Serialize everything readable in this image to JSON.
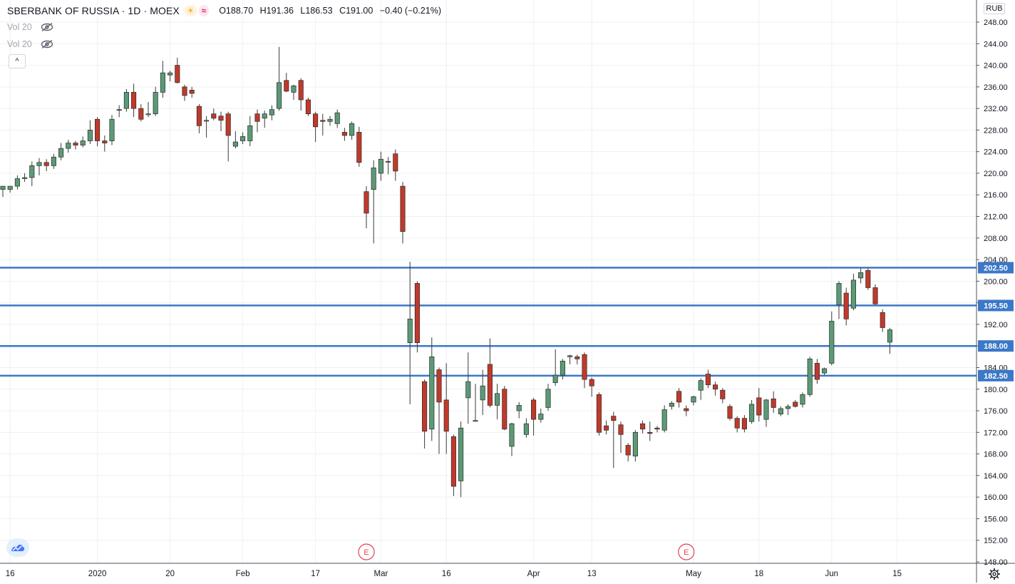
{
  "header": {
    "title": "SBERBANK OF RUSSIA · 1D · MOEX",
    "open": "O188.70",
    "high": "H191.36",
    "low": "L186.53",
    "close": "C191.00",
    "change": "−0.40 (−0.21%)",
    "sun_icon": "sun-icon",
    "wave_icon": "wave-icon"
  },
  "indicators": [
    {
      "label": "Vol 20",
      "icon": "eye-off-icon"
    },
    {
      "label": "Vol 20",
      "icon": "eye-off-icon"
    }
  ],
  "currency": "RUB",
  "colors": {
    "up": "#5b9a76",
    "down": "#c0392b",
    "level_line": "#3b78c7",
    "grid": "#eef0f3"
  },
  "chart_data": {
    "type": "candlestick",
    "ylim": [
      148,
      250
    ],
    "y_ticks": [
      148,
      152,
      156,
      160,
      164,
      168,
      172,
      176,
      180,
      184,
      188,
      192,
      196,
      200,
      204,
      208,
      212,
      216,
      220,
      224,
      228,
      232,
      236,
      240,
      244,
      248
    ],
    "x_labels": [
      {
        "label": "16",
        "index": 1
      },
      {
        "label": "2020",
        "index": 13
      },
      {
        "label": "20",
        "index": 23
      },
      {
        "label": "Feb",
        "index": 33
      },
      {
        "label": "17",
        "index": 43
      },
      {
        "label": "Mar",
        "index": 52
      },
      {
        "label": "16",
        "index": 61
      },
      {
        "label": "Apr",
        "index": 73
      },
      {
        "label": "13",
        "index": 81
      },
      {
        "label": "May",
        "index": 95
      },
      {
        "label": "18",
        "index": 104
      },
      {
        "label": "Jun",
        "index": 114
      },
      {
        "label": "15",
        "index": 123
      }
    ],
    "horizontal_levels": [
      202.5,
      195.5,
      188.0,
      182.5
    ],
    "level_labels": [
      "202.50",
      "195.50",
      "188.00",
      "182.50"
    ],
    "event_markers": [
      {
        "label": "E",
        "index": 50
      },
      {
        "label": "E",
        "index": 94
      }
    ],
    "candles": [
      {
        "o": 217.0,
        "h": 217.6,
        "l": 215.6,
        "c": 217.6
      },
      {
        "o": 217.0,
        "h": 217.6,
        "l": 216.4,
        "c": 217.6
      },
      {
        "o": 217.6,
        "h": 219.6,
        "l": 217.0,
        "c": 219.0
      },
      {
        "o": 219.0,
        "h": 220.0,
        "l": 218.4,
        "c": 219.2
      },
      {
        "o": 219.2,
        "h": 222.2,
        "l": 217.6,
        "c": 221.4
      },
      {
        "o": 221.4,
        "h": 222.8,
        "l": 219.6,
        "c": 222.0
      },
      {
        "o": 222.0,
        "h": 222.6,
        "l": 220.4,
        "c": 221.4
      },
      {
        "o": 221.4,
        "h": 223.6,
        "l": 220.8,
        "c": 223.0
      },
      {
        "o": 223.0,
        "h": 225.6,
        "l": 222.4,
        "c": 224.6
      },
      {
        "o": 224.6,
        "h": 226.2,
        "l": 223.8,
        "c": 225.6
      },
      {
        "o": 225.6,
        "h": 226.0,
        "l": 224.4,
        "c": 225.2
      },
      {
        "o": 225.2,
        "h": 226.8,
        "l": 224.8,
        "c": 226.0
      },
      {
        "o": 226.0,
        "h": 229.8,
        "l": 225.4,
        "c": 228.0
      },
      {
        "o": 230.0,
        "h": 230.4,
        "l": 225.0,
        "c": 226.0
      },
      {
        "o": 226.0,
        "h": 227.0,
        "l": 224.0,
        "c": 225.6
      },
      {
        "o": 226.0,
        "h": 230.8,
        "l": 225.2,
        "c": 230.0
      },
      {
        "o": 231.8,
        "h": 232.6,
        "l": 230.4,
        "c": 231.8
      },
      {
        "o": 232.0,
        "h": 235.6,
        "l": 231.4,
        "c": 235.0
      },
      {
        "o": 235.0,
        "h": 236.6,
        "l": 230.4,
        "c": 232.0
      },
      {
        "o": 232.0,
        "h": 232.8,
        "l": 229.6,
        "c": 230.0
      },
      {
        "o": 231.0,
        "h": 233.2,
        "l": 230.4,
        "c": 231.0
      },
      {
        "o": 231.0,
        "h": 236.0,
        "l": 230.6,
        "c": 235.0
      },
      {
        "o": 235.0,
        "h": 240.8,
        "l": 234.0,
        "c": 238.6
      },
      {
        "o": 238.2,
        "h": 239.0,
        "l": 237.0,
        "c": 238.6
      },
      {
        "o": 240.0,
        "h": 241.4,
        "l": 236.6,
        "c": 236.8
      },
      {
        "o": 236.0,
        "h": 236.4,
        "l": 233.4,
        "c": 234.4
      },
      {
        "o": 235.4,
        "h": 236.0,
        "l": 234.0,
        "c": 234.8
      },
      {
        "o": 232.4,
        "h": 232.8,
        "l": 227.4,
        "c": 228.8
      },
      {
        "o": 229.8,
        "h": 230.6,
        "l": 226.6,
        "c": 229.8
      },
      {
        "o": 231.0,
        "h": 232.0,
        "l": 229.8,
        "c": 230.2
      },
      {
        "o": 230.6,
        "h": 231.4,
        "l": 227.8,
        "c": 229.8
      },
      {
        "o": 231.0,
        "h": 231.4,
        "l": 222.2,
        "c": 227.0
      },
      {
        "o": 225.0,
        "h": 227.8,
        "l": 224.6,
        "c": 225.8
      },
      {
        "o": 226.0,
        "h": 227.6,
        "l": 225.4,
        "c": 226.8
      },
      {
        "o": 226.0,
        "h": 230.6,
        "l": 225.0,
        "c": 228.8
      },
      {
        "o": 231.0,
        "h": 231.8,
        "l": 227.6,
        "c": 229.6
      },
      {
        "o": 230.2,
        "h": 231.6,
        "l": 228.4,
        "c": 231.0
      },
      {
        "o": 230.8,
        "h": 232.6,
        "l": 229.8,
        "c": 231.8
      },
      {
        "o": 232.0,
        "h": 243.4,
        "l": 231.6,
        "c": 236.8
      },
      {
        "o": 237.2,
        "h": 238.6,
        "l": 235.0,
        "c": 235.2
      },
      {
        "o": 235.0,
        "h": 236.4,
        "l": 233.6,
        "c": 236.2
      },
      {
        "o": 237.2,
        "h": 237.6,
        "l": 231.6,
        "c": 233.6
      },
      {
        "o": 233.6,
        "h": 234.0,
        "l": 230.6,
        "c": 231.0
      },
      {
        "o": 231.0,
        "h": 231.4,
        "l": 225.8,
        "c": 228.6
      },
      {
        "o": 229.8,
        "h": 231.0,
        "l": 227.0,
        "c": 229.6
      },
      {
        "o": 229.6,
        "h": 230.6,
        "l": 228.8,
        "c": 230.0
      },
      {
        "o": 229.2,
        "h": 231.8,
        "l": 228.4,
        "c": 231.2
      },
      {
        "o": 227.6,
        "h": 228.4,
        "l": 226.0,
        "c": 227.0
      },
      {
        "o": 227.0,
        "h": 229.6,
        "l": 226.2,
        "c": 229.2
      },
      {
        "o": 227.6,
        "h": 228.6,
        "l": 221.2,
        "c": 222.0
      },
      {
        "o": 216.6,
        "h": 217.6,
        "l": 209.8,
        "c": 212.6
      },
      {
        "o": 217.0,
        "h": 222.4,
        "l": 207.0,
        "c": 221.0
      },
      {
        "o": 220.0,
        "h": 224.0,
        "l": 218.6,
        "c": 222.6
      },
      {
        "o": 222.2,
        "h": 223.0,
        "l": 219.8,
        "c": 222.2
      },
      {
        "o": 223.6,
        "h": 224.4,
        "l": 218.6,
        "c": 220.4
      },
      {
        "o": 217.6,
        "h": 218.4,
        "l": 207.0,
        "c": 209.2
      },
      {
        "o": 188.6,
        "h": 203.6,
        "l": 177.2,
        "c": 193.0
      },
      {
        "o": 199.6,
        "h": 200.0,
        "l": 186.8,
        "c": 188.6
      },
      {
        "o": 181.4,
        "h": 181.8,
        "l": 169.0,
        "c": 172.2
      },
      {
        "o": 172.6,
        "h": 189.6,
        "l": 170.4,
        "c": 186.0
      },
      {
        "o": 183.6,
        "h": 184.0,
        "l": 168.0,
        "c": 177.6
      },
      {
        "o": 178.0,
        "h": 184.8,
        "l": 168.0,
        "c": 172.2
      },
      {
        "o": 171.2,
        "h": 171.6,
        "l": 160.2,
        "c": 162.0
      },
      {
        "o": 163.0,
        "h": 174.0,
        "l": 160.0,
        "c": 172.8
      },
      {
        "o": 178.4,
        "h": 186.8,
        "l": 173.6,
        "c": 181.4
      },
      {
        "o": 174.2,
        "h": 181.0,
        "l": 174.0,
        "c": 174.2
      },
      {
        "o": 178.0,
        "h": 183.6,
        "l": 175.2,
        "c": 180.6
      },
      {
        "o": 184.6,
        "h": 189.4,
        "l": 176.6,
        "c": 177.0
      },
      {
        "o": 177.0,
        "h": 181.0,
        "l": 174.4,
        "c": 179.2
      },
      {
        "o": 180.0,
        "h": 180.6,
        "l": 172.4,
        "c": 172.6
      },
      {
        "o": 169.4,
        "h": 173.8,
        "l": 167.6,
        "c": 173.6
      },
      {
        "o": 176.0,
        "h": 177.6,
        "l": 174.6,
        "c": 177.0
      },
      {
        "o": 171.6,
        "h": 174.6,
        "l": 171.0,
        "c": 173.6
      },
      {
        "o": 178.0,
        "h": 178.4,
        "l": 171.4,
        "c": 174.4
      },
      {
        "o": 174.4,
        "h": 176.4,
        "l": 173.8,
        "c": 175.4
      },
      {
        "o": 176.6,
        "h": 181.0,
        "l": 176.0,
        "c": 180.0
      },
      {
        "o": 181.2,
        "h": 187.4,
        "l": 180.6,
        "c": 182.6
      },
      {
        "o": 182.6,
        "h": 185.6,
        "l": 181.8,
        "c": 185.2
      },
      {
        "o": 186.0,
        "h": 186.4,
        "l": 184.6,
        "c": 186.2
      },
      {
        "o": 186.0,
        "h": 186.4,
        "l": 184.6,
        "c": 185.6
      },
      {
        "o": 186.4,
        "h": 186.8,
        "l": 180.2,
        "c": 181.8
      },
      {
        "o": 181.8,
        "h": 182.2,
        "l": 178.6,
        "c": 180.6
      },
      {
        "o": 179.0,
        "h": 179.4,
        "l": 171.4,
        "c": 172.0
      },
      {
        "o": 173.2,
        "h": 174.2,
        "l": 171.6,
        "c": 172.4
      },
      {
        "o": 175.0,
        "h": 175.8,
        "l": 165.4,
        "c": 174.2
      },
      {
        "o": 173.4,
        "h": 174.0,
        "l": 168.2,
        "c": 171.6
      },
      {
        "o": 169.6,
        "h": 170.0,
        "l": 166.6,
        "c": 167.8
      },
      {
        "o": 167.6,
        "h": 172.4,
        "l": 166.6,
        "c": 172.0
      },
      {
        "o": 173.6,
        "h": 174.2,
        "l": 171.8,
        "c": 172.6
      },
      {
        "o": 172.0,
        "h": 174.0,
        "l": 170.4,
        "c": 171.8
      },
      {
        "o": 172.8,
        "h": 173.2,
        "l": 172.0,
        "c": 172.6
      },
      {
        "o": 172.4,
        "h": 177.0,
        "l": 172.0,
        "c": 176.2
      },
      {
        "o": 176.8,
        "h": 177.8,
        "l": 176.2,
        "c": 177.4
      },
      {
        "o": 179.6,
        "h": 180.2,
        "l": 176.6,
        "c": 177.6
      },
      {
        "o": 176.4,
        "h": 177.0,
        "l": 175.0,
        "c": 176.0
      },
      {
        "o": 177.6,
        "h": 178.8,
        "l": 177.0,
        "c": 178.6
      },
      {
        "o": 179.8,
        "h": 182.0,
        "l": 178.0,
        "c": 181.6
      },
      {
        "o": 182.8,
        "h": 183.6,
        "l": 180.2,
        "c": 180.8
      },
      {
        "o": 180.8,
        "h": 181.4,
        "l": 178.8,
        "c": 180.0
      },
      {
        "o": 179.8,
        "h": 180.2,
        "l": 177.4,
        "c": 178.2
      },
      {
        "o": 176.8,
        "h": 177.2,
        "l": 174.2,
        "c": 174.6
      },
      {
        "o": 174.6,
        "h": 175.0,
        "l": 172.0,
        "c": 172.8
      },
      {
        "o": 174.6,
        "h": 175.2,
        "l": 172.0,
        "c": 172.6
      },
      {
        "o": 174.0,
        "h": 178.0,
        "l": 173.6,
        "c": 177.2
      },
      {
        "o": 178.4,
        "h": 180.2,
        "l": 174.0,
        "c": 175.2
      },
      {
        "o": 174.4,
        "h": 178.2,
        "l": 173.0,
        "c": 178.0
      },
      {
        "o": 178.2,
        "h": 179.6,
        "l": 175.6,
        "c": 176.6
      },
      {
        "o": 175.4,
        "h": 176.8,
        "l": 175.0,
        "c": 176.4
      },
      {
        "o": 176.4,
        "h": 177.2,
        "l": 175.2,
        "c": 176.8
      },
      {
        "o": 177.6,
        "h": 178.0,
        "l": 176.6,
        "c": 176.8
      },
      {
        "o": 177.2,
        "h": 179.4,
        "l": 176.6,
        "c": 179.0
      },
      {
        "o": 179.0,
        "h": 186.0,
        "l": 178.6,
        "c": 185.6
      },
      {
        "o": 184.8,
        "h": 185.6,
        "l": 181.0,
        "c": 181.8
      },
      {
        "o": 183.0,
        "h": 184.0,
        "l": 182.6,
        "c": 183.8
      },
      {
        "o": 184.8,
        "h": 194.4,
        "l": 184.4,
        "c": 192.6
      },
      {
        "o": 195.6,
        "h": 200.0,
        "l": 193.0,
        "c": 199.6
      },
      {
        "o": 197.8,
        "h": 198.8,
        "l": 191.8,
        "c": 193.0
      },
      {
        "o": 195.0,
        "h": 201.4,
        "l": 194.6,
        "c": 200.2
      },
      {
        "o": 200.6,
        "h": 202.4,
        "l": 199.6,
        "c": 201.6
      },
      {
        "o": 202.0,
        "h": 202.4,
        "l": 198.4,
        "c": 198.8
      },
      {
        "o": 198.8,
        "h": 199.4,
        "l": 195.6,
        "c": 195.8
      },
      {
        "o": 194.2,
        "h": 194.8,
        "l": 190.6,
        "c": 191.4
      },
      {
        "o": 188.7,
        "h": 191.36,
        "l": 186.53,
        "c": 191.0
      }
    ]
  }
}
